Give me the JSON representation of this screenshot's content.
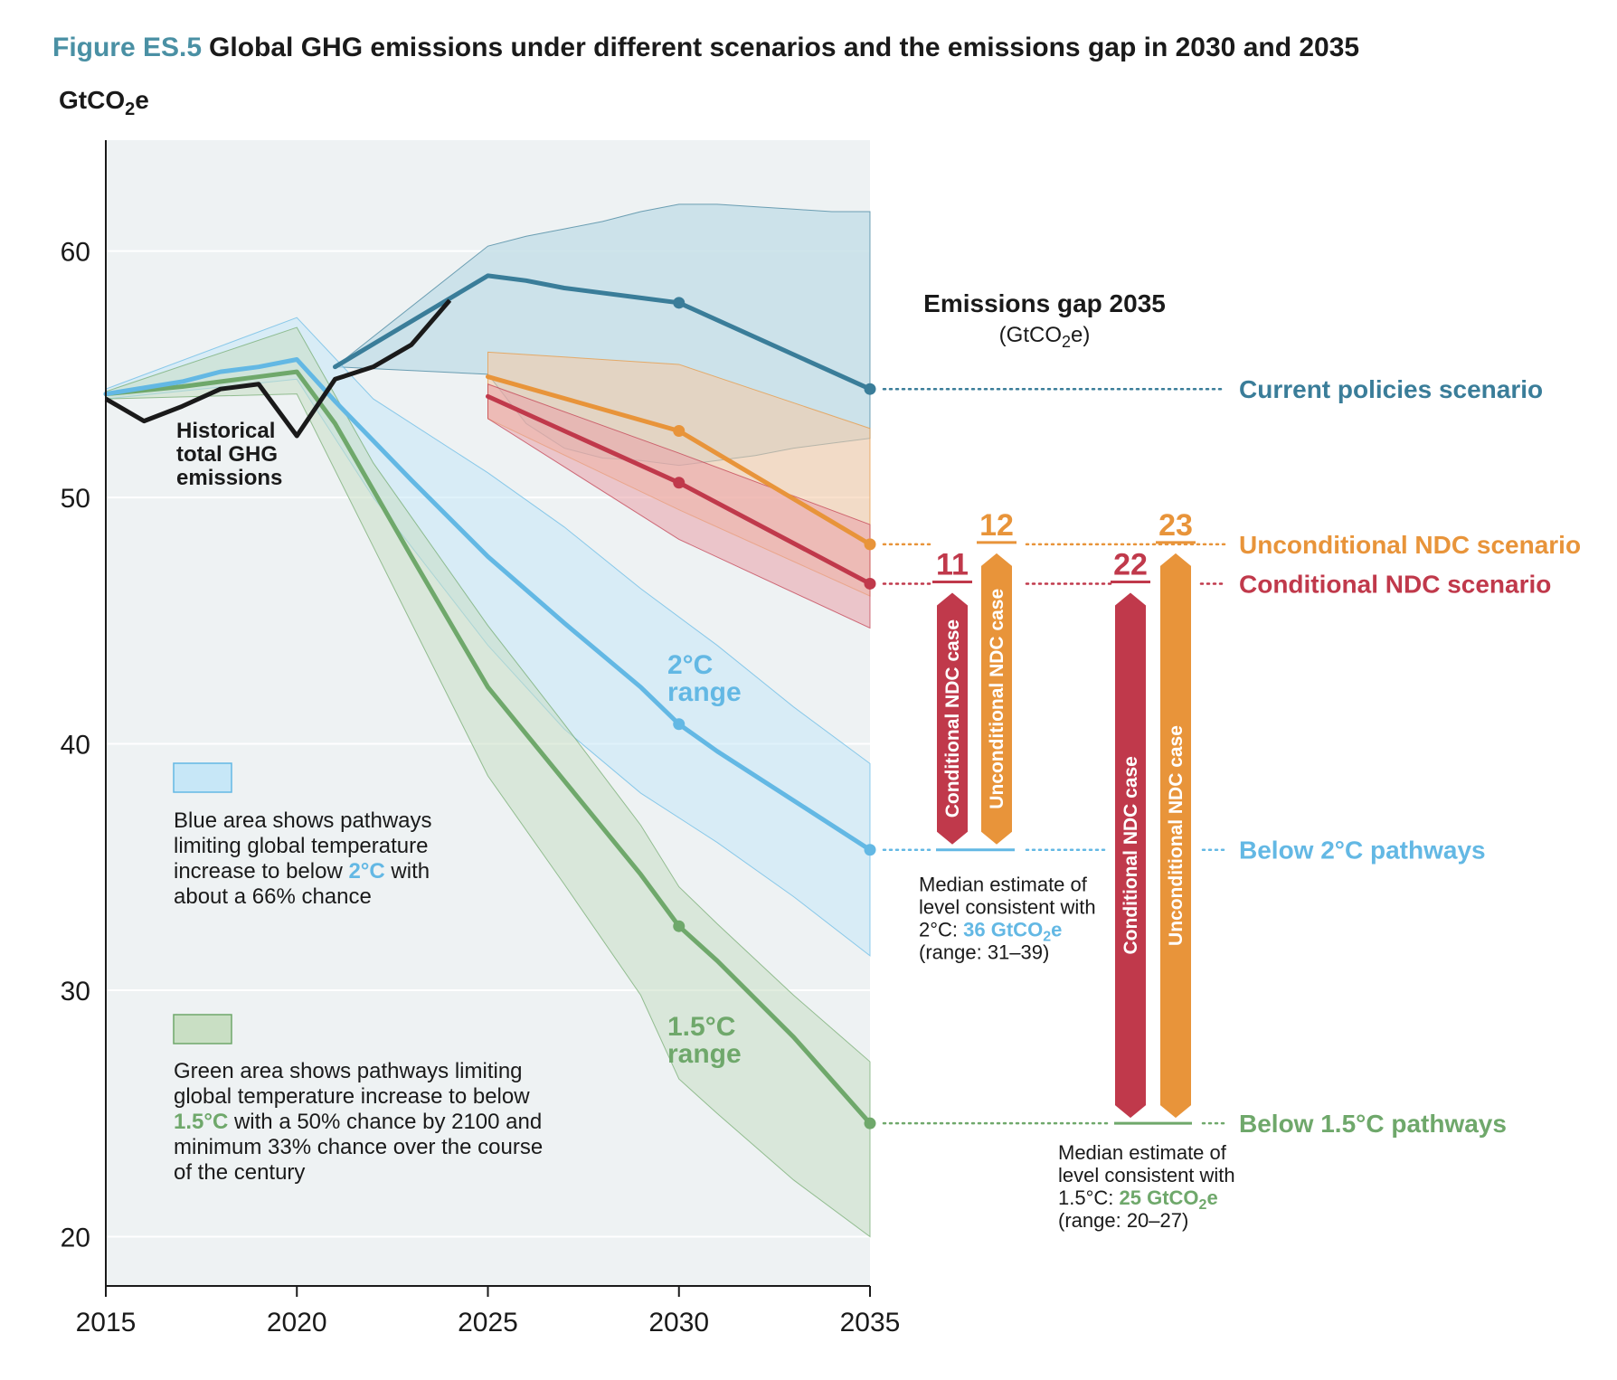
{
  "figure": {
    "label": "Figure ES.5",
    "title": "Global GHG emissions under different scenarios and the emissions gap in 2030 and 2035"
  },
  "chart_data": {
    "type": "line",
    "ylabel": "GtCO",
    "ylabel_sub": "2",
    "ylabel_suffix": "e",
    "xlim": [
      2015,
      2035
    ],
    "ylim": [
      18,
      64.5
    ],
    "xticks": [
      2015,
      2020,
      2025,
      2030,
      2035
    ],
    "yticks": [
      20,
      30,
      40,
      50,
      60
    ],
    "grid": true,
    "colors": {
      "current": "#3a7d99",
      "current_band": "#c6dfe8",
      "unconditional": "#e8943a",
      "unconditional_band": "#f5c9a2",
      "conditional": "#c0394b",
      "conditional_band": "#e9a0a8",
      "below2": "#63b8e4",
      "below2_band": "#c7e7f7",
      "below15": "#6fa86b",
      "below15_band": "#c9dfc4",
      "historical": "#1a1a1a",
      "plot_bg": "#eef2f3"
    },
    "historical": {
      "name": "Historical total GHG emissions",
      "label_lines": [
        "Historical",
        "total GHG",
        "emissions"
      ],
      "x": [
        2015,
        2016,
        2017,
        2018,
        2019,
        2020,
        2021,
        2022,
        2023,
        2024
      ],
      "y": [
        54.0,
        53.1,
        53.7,
        54.4,
        54.6,
        52.5,
        54.8,
        55.3,
        56.2,
        58.0
      ]
    },
    "series": [
      {
        "key": "current",
        "name": "Current policies scenario",
        "x": [
          2021,
          2025,
          2026,
          2027,
          2028,
          2029,
          2030,
          2035
        ],
        "y": [
          55.3,
          59.0,
          58.8,
          58.5,
          58.3,
          58.1,
          57.9,
          54.4
        ],
        "band_x": [
          2021,
          2025,
          2026,
          2027,
          2028,
          2029,
          2030,
          2031,
          2032,
          2033,
          2034,
          2035
        ],
        "band_upper": [
          55.3,
          60.2,
          60.6,
          60.9,
          61.2,
          61.6,
          61.9,
          61.9,
          61.8,
          61.7,
          61.6,
          61.6
        ],
        "band_lower": [
          55.3,
          55.0,
          53.0,
          52.0,
          51.6,
          51.5,
          51.3,
          51.5,
          51.7,
          52.0,
          52.2,
          52.4
        ],
        "marker_x": [
          2030,
          2035
        ]
      },
      {
        "key": "unconditional",
        "name": "Unconditional NDC scenario",
        "x": [
          2025,
          2030,
          2035
        ],
        "y": [
          54.9,
          52.7,
          48.1
        ],
        "band_x": [
          2025,
          2030,
          2035
        ],
        "band_upper": [
          55.9,
          55.4,
          52.8
        ],
        "band_lower": [
          53.2,
          49.5,
          46.0
        ],
        "marker_x": [
          2030,
          2035
        ]
      },
      {
        "key": "conditional",
        "name": "Conditional NDC scenario",
        "x": [
          2025,
          2030,
          2035
        ],
        "y": [
          54.1,
          50.6,
          46.5
        ],
        "band_x": [
          2025,
          2030,
          2035
        ],
        "band_upper": [
          54.6,
          51.8,
          48.9
        ],
        "band_lower": [
          53.2,
          48.3,
          44.7
        ],
        "marker_x": [
          2030,
          2035
        ]
      },
      {
        "key": "below2",
        "name": "Below 2°C pathways",
        "x": [
          2015,
          2017,
          2018,
          2019,
          2020,
          2021,
          2022,
          2023,
          2025,
          2027,
          2029,
          2030,
          2031,
          2035
        ],
        "y": [
          54.2,
          54.7,
          55.1,
          55.3,
          55.6,
          53.9,
          52.3,
          50.7,
          47.6,
          44.9,
          42.3,
          40.8,
          39.7,
          35.7
        ],
        "band_x": [
          2015,
          2020,
          2022,
          2025,
          2027,
          2029,
          2031,
          2033,
          2035
        ],
        "band_upper": [
          54.4,
          57.3,
          54.0,
          51.0,
          48.8,
          46.3,
          44.0,
          41.5,
          39.2
        ],
        "band_lower": [
          54.0,
          54.8,
          50.0,
          44.0,
          40.6,
          38.0,
          36.0,
          33.8,
          31.4
        ],
        "label_lines": [
          "2°C",
          "range"
        ],
        "marker_x": [
          2030,
          2035
        ]
      },
      {
        "key": "below15",
        "name": "Below 1.5°C pathways",
        "x": [
          2015,
          2017,
          2018,
          2019,
          2020,
          2021,
          2023,
          2025,
          2027,
          2029,
          2030,
          2031,
          2033,
          2035
        ],
        "y": [
          54.2,
          54.5,
          54.7,
          54.9,
          55.1,
          53.0,
          47.6,
          42.3,
          38.5,
          34.7,
          32.6,
          31.2,
          28.1,
          24.6
        ],
        "band_x": [
          2015,
          2020,
          2022,
          2025,
          2027,
          2029,
          2030,
          2031,
          2033,
          2035
        ],
        "band_upper": [
          54.3,
          56.9,
          51.4,
          44.8,
          40.8,
          36.7,
          34.2,
          32.7,
          29.8,
          27.1
        ],
        "band_lower": [
          54.0,
          54.2,
          48.0,
          38.7,
          34.3,
          29.8,
          26.4,
          25.0,
          22.3,
          20.0
        ],
        "label_lines": [
          "1.5°C",
          "range"
        ],
        "marker_x": [
          2030,
          2035
        ]
      }
    ],
    "legend": {
      "blue": {
        "lines": [
          "Blue area shows pathways",
          "limiting global temperature"
        ],
        "line3_pre": "increase to below ",
        "line3_hl": "2°C",
        "line3_post": " with",
        "line4": "about a 66% chance"
      },
      "green": {
        "lines": [
          "Green area shows pathways limiting",
          "global temperature increase to below"
        ],
        "line3_hl": "1.5°C",
        "line3_post": " with a 50% chance by 2100 and",
        "line4": "minimum 33% chance over the course",
        "line5": "of the century"
      }
    },
    "gap": {
      "title": "Emissions gap 2035",
      "unit_pre": "(GtCO",
      "unit_sub": "2",
      "unit_post": "e)",
      "bars_2c": [
        {
          "key": "conditional",
          "label": "Conditional NDC case",
          "value": 11
        },
        {
          "key": "unconditional",
          "label": "Unconditional NDC case",
          "value": 12
        }
      ],
      "bars_15c": [
        {
          "key": "conditional",
          "label": "Conditional NDC case",
          "value": 22
        },
        {
          "key": "unconditional",
          "label": "Unconditional NDC case",
          "value": 23
        }
      ],
      "note_2c": {
        "line1": "Median estimate of",
        "line2": "level consistent with",
        "line3_pre": "2°C: ",
        "line3_hl": "36 GtCO",
        "line3_sub": "2",
        "line3_suffix": "e",
        "line4": "(range: 31–39)"
      },
      "note_15c": {
        "line1": "Median estimate of",
        "line2": "level consistent with",
        "line3_pre": "1.5°C: ",
        "line3_hl": "25 GtCO",
        "line3_sub": "2",
        "line3_suffix": "e",
        "line4": "(range: 20–27)"
      }
    }
  }
}
